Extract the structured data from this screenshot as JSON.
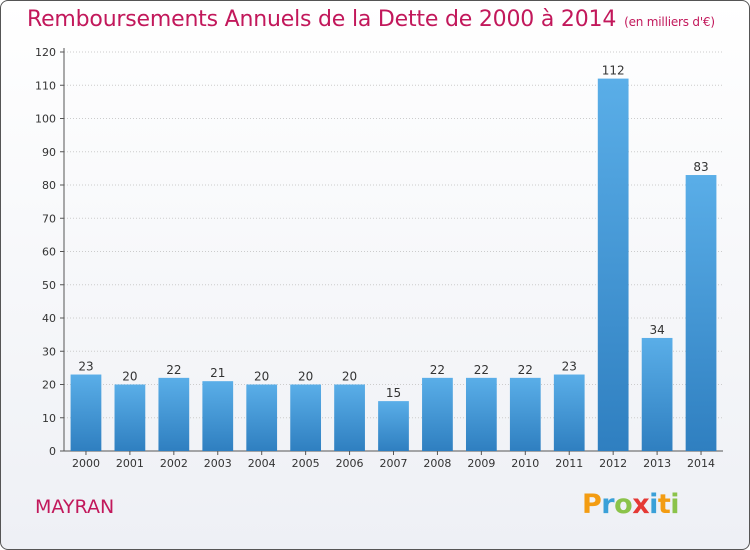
{
  "title": "Remboursements Annuels de la Dette de 2000 à 2014",
  "unit_note": "(en milliers d'€)",
  "commune": "MAYRAN",
  "logo": {
    "text": "Proxiti",
    "letters": [
      {
        "char": "P",
        "color": "#f39c12"
      },
      {
        "char": "r",
        "color": "#3aa0d8"
      },
      {
        "char": "o",
        "color": "#8bc34a"
      },
      {
        "char": "x",
        "color": "#e53935"
      },
      {
        "char": "i",
        "color": "#3aa0d8"
      },
      {
        "char": "t",
        "color": "#f39c12"
      },
      {
        "char": "i",
        "color": "#8bc34a"
      }
    ]
  },
  "colors": {
    "bar_top": "#5aaee8",
    "bar_bottom": "#2f7fc0",
    "grid": "#cccccc",
    "axis": "#555555",
    "title": "#c2185b"
  },
  "chart_data": {
    "type": "bar",
    "categories": [
      "2000",
      "2001",
      "2002",
      "2003",
      "2004",
      "2005",
      "2006",
      "2007",
      "2008",
      "2009",
      "2010",
      "2011",
      "2012",
      "2013",
      "2014"
    ],
    "values": [
      23,
      20,
      22,
      21,
      20,
      20,
      20,
      15,
      22,
      22,
      22,
      23,
      112,
      34,
      83
    ],
    "ylim": [
      0,
      120
    ],
    "yticks": [
      0,
      10,
      20,
      30,
      40,
      50,
      60,
      70,
      80,
      90,
      100,
      110,
      120
    ],
    "grid": true,
    "xlabel": "",
    "ylabel": ""
  }
}
